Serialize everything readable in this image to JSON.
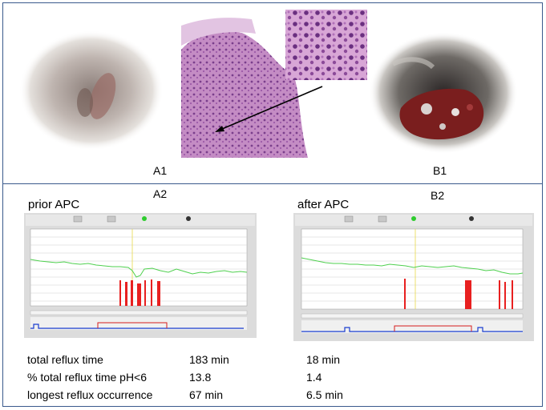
{
  "labels": {
    "a1": "A1",
    "b1": "B1",
    "a2": "A2",
    "b2": "B2",
    "prior": "prior APC",
    "after": "after APC"
  },
  "results": {
    "rows": [
      {
        "label": "total reflux time",
        "prior": "183 min",
        "after": "18 min"
      },
      {
        "label": "% total reflux time pH<6",
        "prior": "13.8",
        "after": "1.4"
      },
      {
        "label": "longest reflux occurrence",
        "prior": "67 min",
        "after": "6.5 min"
      }
    ]
  }
}
